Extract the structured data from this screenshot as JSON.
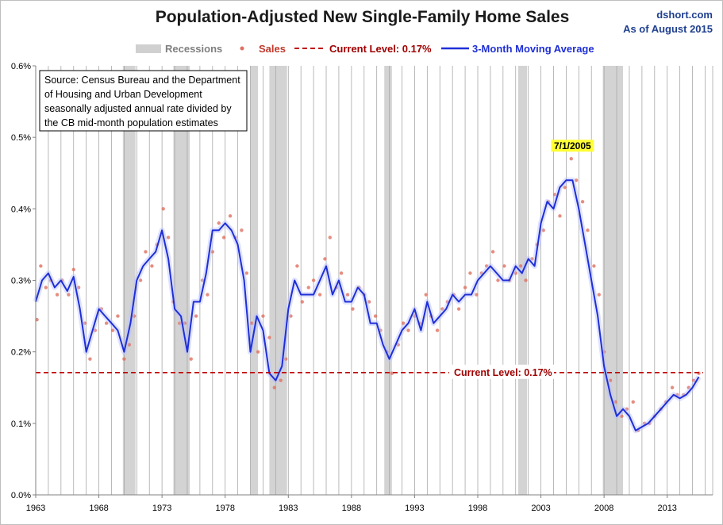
{
  "chart_data": {
    "type": "line",
    "title": "Population-Adjusted New Single-Family Home Sales",
    "credit": [
      "dshort.com",
      "As of August 2015"
    ],
    "x_range": [
      1963,
      2016.6
    ],
    "ylim": [
      0,
      0.6
    ],
    "y_ticks": [
      0,
      0.1,
      0.2,
      0.3,
      0.4,
      0.5,
      0.6
    ],
    "y_tick_labels": [
      "0.0%",
      "0.1%",
      "0.2%",
      "0.3%",
      "0.4%",
      "0.5%",
      "0.6%"
    ],
    "x_ticks": [
      1963,
      1968,
      1973,
      1978,
      1983,
      1988,
      1993,
      1998,
      2003,
      2008,
      2013
    ],
    "x_tick_labels": [
      "1963",
      "1968",
      "1973",
      "1978",
      "1983",
      "1988",
      "1993",
      "1998",
      "2003",
      "2008",
      "2013"
    ],
    "grid": "vertical lines each year",
    "legend_position": "top",
    "legend": {
      "recessions": "Recessions",
      "sales": "Sales",
      "current": "Current Level: 0.17%",
      "ma": "3-Month Moving Average"
    },
    "source_note": [
      "Source: Census Bureau and the Department",
      "of Housing and Urban Development",
      "seasonally adjusted annual rate divided by",
      "the CB mid-month population estimates"
    ],
    "annotations": {
      "peak_label": "7/1/2005",
      "peak_x": 2005.5,
      "peak_y": 0.47,
      "current_label": "Current Level: 0.17%"
    },
    "current_level": 0.171,
    "recessions": [
      [
        1969.9,
        1970.9
      ],
      [
        1973.9,
        1975.2
      ],
      [
        1980.0,
        1980.6
      ],
      [
        1981.5,
        1982.9
      ],
      [
        1990.6,
        1991.2
      ],
      [
        2001.2,
        2001.9
      ],
      [
        2007.9,
        2009.5
      ]
    ],
    "series": [
      {
        "name": "3-Month Moving Average",
        "color": "#1f2fd6",
        "x": [
          1963.0,
          1963.5,
          1964.0,
          1964.5,
          1965.0,
          1965.5,
          1966.0,
          1966.5,
          1967.0,
          1967.5,
          1968.0,
          1968.5,
          1969.0,
          1969.5,
          1970.0,
          1970.5,
          1971.0,
          1971.5,
          1972.0,
          1972.5,
          1973.0,
          1973.5,
          1974.0,
          1974.5,
          1975.0,
          1975.5,
          1976.0,
          1976.5,
          1977.0,
          1977.5,
          1978.0,
          1978.5,
          1979.0,
          1979.5,
          1980.0,
          1980.5,
          1981.0,
          1981.5,
          1982.0,
          1982.5,
          1983.0,
          1983.5,
          1984.0,
          1984.5,
          1985.0,
          1985.5,
          1986.0,
          1986.5,
          1987.0,
          1987.5,
          1988.0,
          1988.5,
          1989.0,
          1989.5,
          1990.0,
          1990.5,
          1991.0,
          1991.5,
          1992.0,
          1992.5,
          1993.0,
          1993.5,
          1994.0,
          1994.5,
          1995.0,
          1995.5,
          1996.0,
          1996.5,
          1997.0,
          1997.5,
          1998.0,
          1998.5,
          1999.0,
          1999.5,
          2000.0,
          2000.5,
          2001.0,
          2001.5,
          2002.0,
          2002.5,
          2003.0,
          2003.5,
          2004.0,
          2004.5,
          2005.0,
          2005.5,
          2006.0,
          2006.5,
          2007.0,
          2007.5,
          2008.0,
          2008.5,
          2009.0,
          2009.5,
          2010.0,
          2010.5,
          2011.0,
          2011.5,
          2012.0,
          2012.5,
          2013.0,
          2013.5,
          2014.0,
          2014.5,
          2015.0,
          2015.5
        ],
        "y": [
          0.27,
          0.3,
          0.31,
          0.29,
          0.3,
          0.285,
          0.305,
          0.26,
          0.2,
          0.23,
          0.26,
          0.25,
          0.24,
          0.23,
          0.2,
          0.24,
          0.3,
          0.32,
          0.33,
          0.34,
          0.37,
          0.33,
          0.26,
          0.25,
          0.2,
          0.27,
          0.27,
          0.31,
          0.37,
          0.37,
          0.38,
          0.37,
          0.35,
          0.3,
          0.2,
          0.25,
          0.23,
          0.17,
          0.16,
          0.18,
          0.26,
          0.3,
          0.28,
          0.28,
          0.28,
          0.3,
          0.32,
          0.28,
          0.3,
          0.27,
          0.27,
          0.29,
          0.28,
          0.24,
          0.24,
          0.21,
          0.19,
          0.21,
          0.23,
          0.24,
          0.26,
          0.23,
          0.27,
          0.24,
          0.25,
          0.26,
          0.28,
          0.27,
          0.28,
          0.28,
          0.3,
          0.31,
          0.32,
          0.31,
          0.3,
          0.3,
          0.32,
          0.31,
          0.33,
          0.32,
          0.38,
          0.41,
          0.4,
          0.43,
          0.44,
          0.44,
          0.4,
          0.35,
          0.3,
          0.25,
          0.18,
          0.14,
          0.11,
          0.12,
          0.11,
          0.09,
          0.095,
          0.1,
          0.11,
          0.12,
          0.13,
          0.14,
          0.135,
          0.14,
          0.15,
          0.165
        ]
      },
      {
        "name": "Sales",
        "color": "#e07060",
        "x": [
          1963.1,
          1963.4,
          1963.8,
          1964.2,
          1964.7,
          1965.1,
          1965.6,
          1966.0,
          1966.4,
          1966.9,
          1967.3,
          1967.7,
          1968.2,
          1968.6,
          1969.1,
          1969.5,
          1970.0,
          1970.4,
          1970.8,
          1971.3,
          1971.7,
          1972.2,
          1972.6,
          1973.1,
          1973.5,
          1973.9,
          1974.4,
          1974.8,
          1975.3,
          1975.7,
          1976.2,
          1976.6,
          1977.0,
          1977.5,
          1977.9,
          1978.4,
          1978.8,
          1979.3,
          1979.7,
          1980.1,
          1980.6,
          1981.0,
          1981.5,
          1981.9,
          1982.4,
          1982.8,
          1983.2,
          1983.7,
          1984.1,
          1984.6,
          1985.0,
          1985.5,
          1985.9,
          1986.3,
          1986.8,
          1987.2,
          1987.7,
          1988.1,
          1988.6,
          1989.0,
          1989.4,
          1989.9,
          1990.3,
          1990.8,
          1991.2,
          1991.7,
          1992.1,
          1992.5,
          1993.0,
          1993.4,
          1993.9,
          1994.3,
          1994.8,
          1995.2,
          1995.6,
          1996.1,
          1996.5,
          1997.0,
          1997.4,
          1997.9,
          1998.3,
          1998.7,
          1999.2,
          1999.6,
          2000.1,
          2000.5,
          2001.0,
          2001.4,
          2001.8,
          2002.3,
          2002.7,
          2003.2,
          2003.6,
          2004.1,
          2004.5,
          2004.9,
          2005.4,
          2005.8,
          2006.3,
          2006.7,
          2007.2,
          2007.6,
          2008.0,
          2008.5,
          2008.9,
          2009.4,
          2009.8,
          2010.3,
          2010.7,
          2011.2,
          2011.6,
          2012.0,
          2012.5,
          2012.9,
          2013.4,
          2013.8,
          2014.3,
          2014.7,
          2015.1,
          2015.5
        ],
        "y": [
          0.245,
          0.32,
          0.29,
          0.3,
          0.28,
          0.3,
          0.28,
          0.315,
          0.29,
          0.24,
          0.19,
          0.23,
          0.26,
          0.24,
          0.23,
          0.25,
          0.19,
          0.21,
          0.25,
          0.3,
          0.34,
          0.32,
          0.35,
          0.4,
          0.36,
          0.27,
          0.24,
          0.24,
          0.19,
          0.25,
          0.3,
          0.28,
          0.34,
          0.38,
          0.36,
          0.39,
          0.36,
          0.37,
          0.31,
          0.24,
          0.2,
          0.25,
          0.22,
          0.15,
          0.16,
          0.19,
          0.25,
          0.32,
          0.27,
          0.29,
          0.3,
          0.28,
          0.33,
          0.36,
          0.29,
          0.31,
          0.28,
          0.26,
          0.29,
          0.28,
          0.27,
          0.25,
          0.23,
          0.2,
          0.17,
          0.21,
          0.24,
          0.23,
          0.25,
          0.24,
          0.28,
          0.25,
          0.23,
          0.26,
          0.27,
          0.28,
          0.26,
          0.29,
          0.31,
          0.28,
          0.31,
          0.32,
          0.34,
          0.3,
          0.32,
          0.3,
          0.31,
          0.32,
          0.3,
          0.33,
          0.35,
          0.37,
          0.41,
          0.42,
          0.39,
          0.43,
          0.47,
          0.44,
          0.41,
          0.37,
          0.32,
          0.28,
          0.2,
          0.16,
          0.13,
          0.11,
          0.12,
          0.13,
          0.09,
          0.1,
          0.1,
          0.11,
          0.12,
          0.13,
          0.15,
          0.14,
          0.14,
          0.15,
          0.16,
          0.17
        ]
      }
    ]
  }
}
